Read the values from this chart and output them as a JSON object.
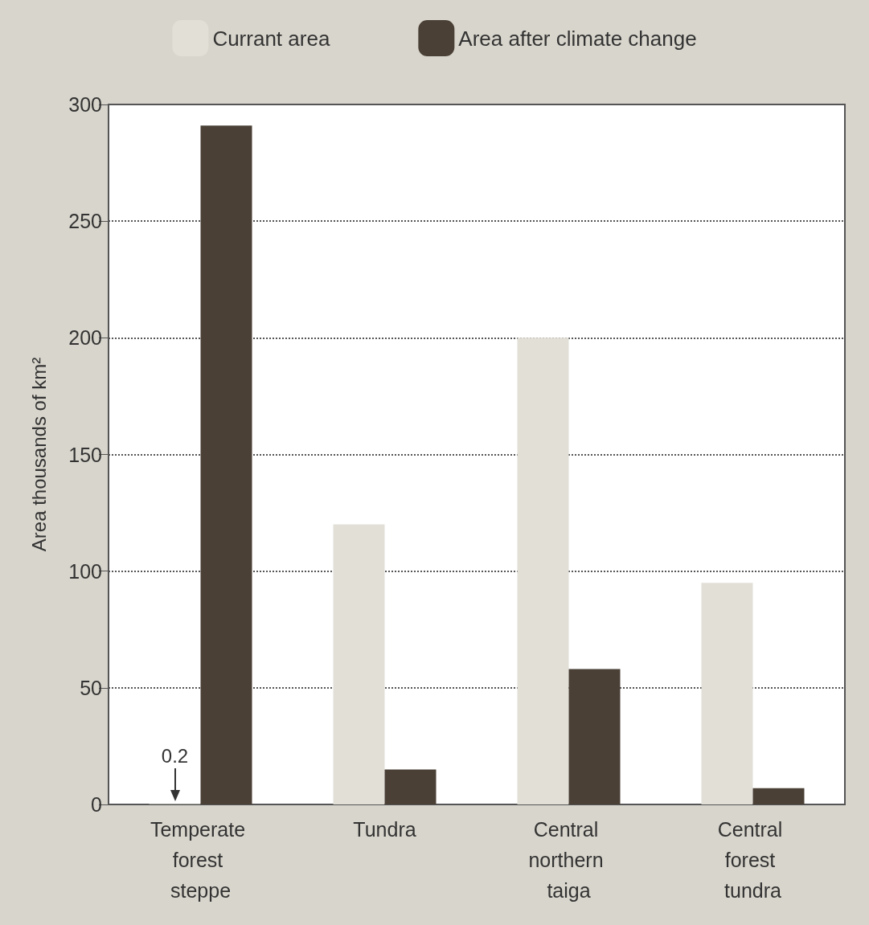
{
  "chart_data": {
    "type": "bar",
    "ylabel": "Area thousands of km²",
    "categories": [
      "Temperate forest steppe",
      "Tundra",
      "Central northern taiga",
      "Central forest tundra"
    ],
    "series": [
      {
        "name": "Currant area",
        "color": "#e2dfd7",
        "values": [
          0.2,
          120,
          200,
          95
        ],
        "value_labels": [
          "0.2",
          null,
          null,
          null
        ]
      },
      {
        "name": "Area after climate change",
        "color": "#4a4036",
        "values": [
          291,
          15,
          58,
          7
        ]
      }
    ],
    "ylim": [
      0,
      300
    ],
    "yticks": [
      0,
      50,
      100,
      150,
      200,
      250,
      300
    ],
    "grid": "y",
    "legend": "top"
  }
}
